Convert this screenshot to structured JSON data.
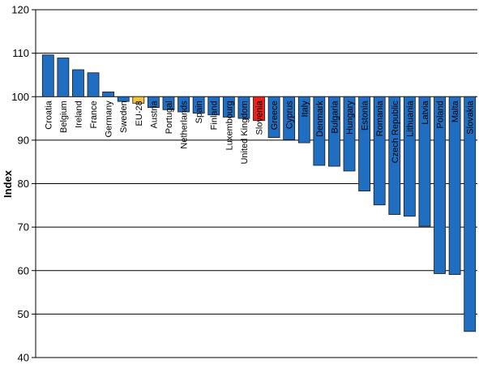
{
  "chart_data": {
    "type": "bar",
    "ylabel": "Index",
    "xlabel": "",
    "title": "",
    "ylim": [
      40,
      120
    ],
    "yticks": [
      40,
      50,
      60,
      70,
      80,
      90,
      100,
      110,
      120
    ],
    "baseline": 100,
    "grid": "horizontal",
    "legend": "none",
    "colors": {
      "default": "#1F6EC1",
      "eu": "#F7C33B",
      "highlight": "#E8231C",
      "border": "#1a1a1a"
    },
    "categories": [
      "Croatia",
      "Belgium",
      "Ireland",
      "France",
      "Germany",
      "Sweden",
      "EU-28",
      "Austria",
      "Portugal",
      "Netherlands",
      "Spain",
      "Finland",
      "Luxembourg",
      "United Kingdom",
      "Slovenia",
      "Greece",
      "Cyprus",
      "Italy",
      "Denmark",
      "Bulgaria",
      "Hungary",
      "Estonia",
      "Romania",
      "Czech Republic",
      "Lithuania",
      "Latvia",
      "Poland",
      "Malta",
      "Slovakia"
    ],
    "values": [
      109.6,
      108.9,
      106.2,
      105.5,
      101.1,
      98.9,
      98.5,
      97.5,
      97.0,
      96.5,
      96.2,
      95.8,
      95.3,
      95.0,
      94.5,
      90.6,
      90.1,
      89.4,
      84.2,
      84.0,
      82.9,
      78.3,
      75.1,
      72.9,
      72.5,
      70.2,
      59.3,
      59.1,
      46.0
    ],
    "highlight_categories": {
      "EU-28": "eu",
      "Slovenia": "highlight"
    }
  }
}
